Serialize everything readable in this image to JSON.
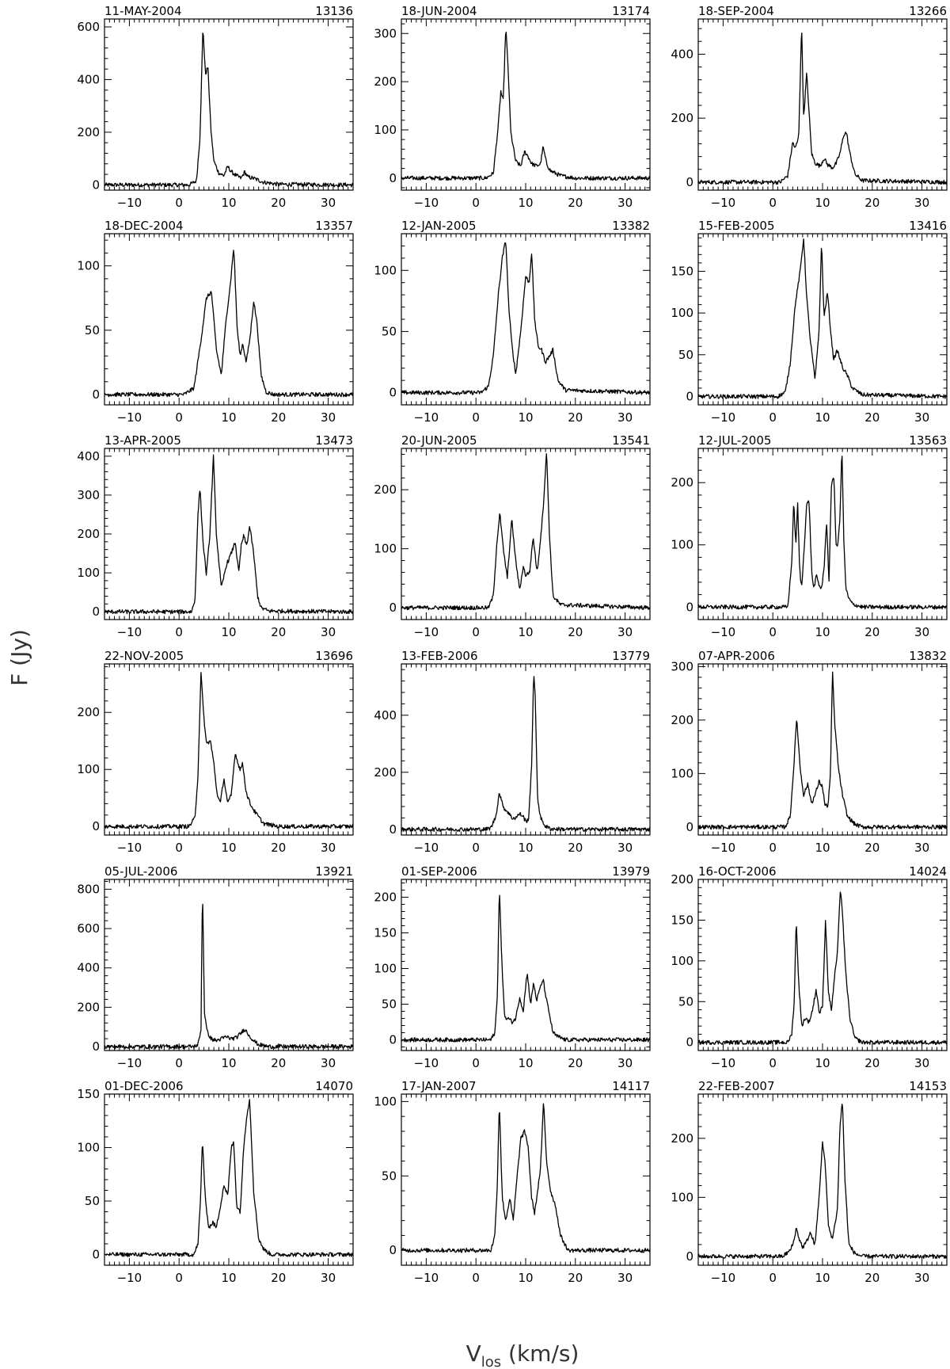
{
  "figure": {
    "ylabel": "F (Jy)",
    "xlabel_main": "V",
    "xlabel_sub": "los",
    "xlabel_unit": "(km/s)"
  },
  "chart_data": [
    {
      "type": "line",
      "date": "11-MAY-2004",
      "id": "13136",
      "xlim": [
        -15,
        35
      ],
      "ylim": [
        -20,
        630
      ],
      "yticks": [
        0,
        200,
        400,
        600
      ],
      "xticks": [
        -10,
        0,
        10,
        20,
        30
      ],
      "x": [
        -15,
        2,
        3.5,
        4.2,
        4.8,
        5.3,
        5.8,
        6.4,
        7,
        8,
        9,
        9.8,
        10.5,
        11.5,
        12.5,
        13.2,
        13.8,
        15,
        17,
        20,
        35
      ],
      "y": [
        0,
        0,
        15,
        180,
        600,
        420,
        450,
        210,
        90,
        45,
        35,
        70,
        50,
        35,
        25,
        50,
        30,
        25,
        10,
        2,
        0
      ]
    },
    {
      "type": "line",
      "date": "18-JUN-2004",
      "id": "13174",
      "xlim": [
        -15,
        35
      ],
      "ylim": [
        -25,
        330
      ],
      "yticks": [
        0,
        100,
        200,
        300
      ],
      "xticks": [
        -10,
        0,
        10,
        20,
        30
      ],
      "x": [
        -15,
        2,
        3.5,
        4.5,
        5,
        5.5,
        6,
        6.5,
        7,
        8,
        9,
        9.8,
        10.5,
        11.2,
        12.2,
        13,
        13.5,
        14.2,
        15,
        17,
        20,
        35
      ],
      "y": [
        0,
        0,
        10,
        110,
        180,
        160,
        315,
        220,
        95,
        35,
        25,
        55,
        45,
        30,
        25,
        30,
        65,
        30,
        15,
        5,
        0,
        0
      ]
    },
    {
      "type": "line",
      "date": "18-SEP-2004",
      "id": "13266",
      "xlim": [
        -15,
        35
      ],
      "ylim": [
        -25,
        510
      ],
      "yticks": [
        0,
        200,
        400
      ],
      "xticks": [
        -10,
        0,
        10,
        20,
        30
      ],
      "x": [
        -15,
        1.5,
        3,
        4,
        4.5,
        5.2,
        5.8,
        6.2,
        6.8,
        7.2,
        7.8,
        8.5,
        9.5,
        10.3,
        11,
        12,
        12.8,
        13.5,
        14.3,
        14.8,
        15.5,
        16.5,
        18,
        35
      ],
      "y": [
        0,
        0,
        20,
        125,
        105,
        140,
        490,
        200,
        340,
        240,
        90,
        60,
        50,
        75,
        55,
        45,
        60,
        90,
        150,
        155,
        90,
        25,
        5,
        0
      ]
    },
    {
      "type": "line",
      "date": "18-DEC-2004",
      "id": "13357",
      "xlim": [
        -15,
        35
      ],
      "ylim": [
        -8,
        125
      ],
      "yticks": [
        0,
        50,
        100
      ],
      "xticks": [
        -10,
        0,
        10,
        20,
        30
      ],
      "x": [
        -15,
        1,
        3,
        4.5,
        5.5,
        6.5,
        7.5,
        8.5,
        9.5,
        10.3,
        11,
        11.7,
        12.3,
        12.8,
        13.5,
        14.3,
        15,
        15.7,
        16.5,
        17.5,
        19,
        35
      ],
      "y": [
        0,
        0,
        5,
        45,
        75,
        80,
        35,
        15,
        60,
        85,
        115,
        50,
        30,
        40,
        25,
        45,
        73,
        55,
        15,
        2,
        0,
        0
      ]
    },
    {
      "type": "line",
      "date": "12-JAN-2005",
      "id": "13382",
      "xlim": [
        -15,
        35
      ],
      "ylim": [
        -10,
        130
      ],
      "yticks": [
        0,
        50,
        100
      ],
      "xticks": [
        -10,
        0,
        10,
        20,
        30
      ],
      "x": [
        -15,
        1,
        2.5,
        3.5,
        4.5,
        5.3,
        6,
        6.6,
        7.2,
        8,
        9,
        10,
        10.7,
        11.2,
        11.8,
        12.5,
        13.2,
        14,
        14.8,
        15.5,
        16.5,
        18,
        35
      ],
      "y": [
        0,
        0,
        5,
        30,
        80,
        110,
        125,
        70,
        40,
        15,
        50,
        95,
        90,
        115,
        60,
        38,
        35,
        25,
        30,
        35,
        10,
        2,
        0
      ]
    },
    {
      "type": "line",
      "date": "15-FEB-2005",
      "id": "13416",
      "xlim": [
        -15,
        35
      ],
      "ylim": [
        -10,
        195
      ],
      "yticks": [
        0,
        50,
        100,
        150
      ],
      "xticks": [
        -10,
        0,
        10,
        20,
        30
      ],
      "x": [
        -15,
        1,
        2.5,
        3.5,
        4.5,
        5.5,
        6.2,
        6.8,
        7.5,
        8.5,
        9.3,
        9.8,
        10.3,
        11,
        11.6,
        12.2,
        13,
        14,
        15,
        16,
        18,
        35
      ],
      "y": [
        0,
        0,
        5,
        40,
        110,
        150,
        190,
        120,
        70,
        20,
        80,
        185,
        95,
        125,
        80,
        45,
        55,
        35,
        25,
        10,
        2,
        0
      ]
    },
    {
      "type": "line",
      "date": "13-APR-2005",
      "id": "13473",
      "xlim": [
        -15,
        35
      ],
      "ylim": [
        -20,
        420
      ],
      "yticks": [
        0,
        100,
        200,
        300,
        400
      ],
      "xticks": [
        -10,
        0,
        10,
        20,
        30
      ],
      "x": [
        -15,
        2.5,
        3.2,
        3.8,
        4.2,
        4.8,
        5.5,
        6.2,
        6.9,
        7.5,
        8.5,
        9.5,
        10.5,
        11.3,
        12,
        12.5,
        13,
        13.6,
        14.2,
        15,
        15.8,
        16.5,
        18,
        35
      ],
      "y": [
        0,
        0,
        30,
        250,
        320,
        180,
        95,
        200,
        400,
        200,
        60,
        120,
        150,
        180,
        100,
        170,
        195,
        170,
        220,
        150,
        40,
        10,
        2,
        0
      ]
    },
    {
      "type": "line",
      "date": "20-JUN-2005",
      "id": "13541",
      "xlim": [
        -15,
        35
      ],
      "ylim": [
        -20,
        270
      ],
      "yticks": [
        0,
        100,
        200
      ],
      "xticks": [
        -10,
        0,
        10,
        20,
        30
      ],
      "x": [
        -15,
        2.5,
        3.5,
        4.2,
        4.8,
        5.5,
        6.3,
        7.2,
        8,
        8.8,
        9.5,
        10,
        10.8,
        11.5,
        12.3,
        12.8,
        13.5,
        14.2,
        14.8,
        15.5,
        17,
        35
      ],
      "y": [
        0,
        0,
        20,
        110,
        160,
        100,
        50,
        150,
        80,
        30,
        70,
        55,
        60,
        120,
        60,
        100,
        165,
        265,
        120,
        20,
        5,
        0
      ]
    },
    {
      "type": "line",
      "date": "12-JUL-2005",
      "id": "13563",
      "xlim": [
        -15,
        35
      ],
      "ylim": [
        -20,
        255
      ],
      "yticks": [
        0,
        100,
        200
      ],
      "xticks": [
        -10,
        0,
        10,
        20,
        30
      ],
      "x": [
        -15,
        3,
        3.8,
        4.2,
        4.6,
        5,
        5.4,
        5.8,
        6.3,
        6.8,
        7.3,
        7.8,
        8.2,
        8.8,
        9.3,
        9.8,
        10.3,
        10.8,
        11.3,
        11.8,
        12.3,
        12.7,
        13.1,
        13.5,
        13.9,
        14.3,
        14.7,
        15.2,
        16,
        18,
        35
      ],
      "y": [
        0,
        0,
        70,
        170,
        100,
        165,
        60,
        30,
        95,
        165,
        170,
        60,
        30,
        50,
        35,
        30,
        60,
        140,
        40,
        200,
        210,
        100,
        100,
        145,
        255,
        100,
        30,
        15,
        5,
        0,
        0
      ]
    },
    {
      "type": "line",
      "date": "22-NOV-2005",
      "id": "13696",
      "xlim": [
        -15,
        35
      ],
      "ylim": [
        -15,
        285
      ],
      "yticks": [
        0,
        100,
        200
      ],
      "xticks": [
        -10,
        0,
        10,
        20,
        30
      ],
      "x": [
        -15,
        2,
        3.2,
        3.8,
        4.4,
        4.9,
        5.5,
        6.3,
        7,
        7.6,
        8.3,
        9,
        9.8,
        10.5,
        11.3,
        11.7,
        12.3,
        12.8,
        13.5,
        14.3,
        15.3,
        17,
        20,
        35
      ],
      "y": [
        0,
        0,
        15,
        90,
        270,
        200,
        145,
        150,
        110,
        60,
        40,
        85,
        40,
        55,
        130,
        115,
        100,
        110,
        60,
        40,
        25,
        5,
        0,
        0
      ]
    },
    {
      "type": "line",
      "date": "13-FEB-2006",
      "id": "13779",
      "xlim": [
        -15,
        35
      ],
      "ylim": [
        -20,
        580
      ],
      "yticks": [
        0,
        200,
        400
      ],
      "xticks": [
        -10,
        0,
        10,
        20,
        30
      ],
      "x": [
        -15,
        2,
        3,
        4,
        4.7,
        5.2,
        5.8,
        6.5,
        7.2,
        8,
        8.8,
        9.5,
        10.1,
        10.6,
        11.2,
        11.6,
        11.9,
        12.4,
        13,
        14,
        15,
        18,
        35
      ],
      "y": [
        0,
        0,
        5,
        45,
        130,
        95,
        70,
        60,
        40,
        40,
        55,
        45,
        25,
        40,
        220,
        550,
        470,
        110,
        40,
        10,
        2,
        0,
        0
      ]
    },
    {
      "type": "line",
      "date": "07-APR-2006",
      "id": "13832",
      "xlim": [
        -15,
        35
      ],
      "ylim": [
        -15,
        305
      ],
      "yticks": [
        0,
        100,
        200,
        300
      ],
      "xticks": [
        -10,
        0,
        10,
        20,
        30
      ],
      "x": [
        -15,
        2.5,
        3.5,
        4.2,
        4.8,
        5.5,
        6.2,
        7,
        7.8,
        8.5,
        9.3,
        10,
        10.5,
        11.1,
        11.6,
        12,
        12.4,
        13.2,
        14,
        15,
        16.5,
        18,
        35
      ],
      "y": [
        0,
        0,
        20,
        110,
        205,
        110,
        60,
        80,
        45,
        60,
        85,
        75,
        40,
        40,
        100,
        295,
        200,
        110,
        60,
        20,
        5,
        0,
        0
      ]
    },
    {
      "type": "line",
      "date": "05-JUL-2006",
      "id": "13921",
      "xlim": [
        -15,
        35
      ],
      "ylim": [
        -20,
        850
      ],
      "yticks": [
        0,
        200,
        400,
        600,
        800
      ],
      "xticks": [
        -10,
        0,
        10,
        20,
        30
      ],
      "x": [
        -15,
        3,
        3.8,
        4.4,
        4.7,
        5.1,
        5.6,
        6.4,
        7.5,
        8.5,
        9.5,
        10.5,
        11.5,
        12.5,
        13.2,
        14,
        15,
        16,
        18,
        35
      ],
      "y": [
        0,
        0,
        10,
        80,
        820,
        180,
        80,
        40,
        30,
        40,
        50,
        40,
        45,
        70,
        90,
        60,
        30,
        10,
        0,
        0
      ]
    },
    {
      "type": "line",
      "date": "01-SEP-2006",
      "id": "13979",
      "xlim": [
        -15,
        35
      ],
      "ylim": [
        -15,
        225
      ],
      "yticks": [
        0,
        50,
        100,
        150,
        200
      ],
      "xticks": [
        -10,
        0,
        10,
        20,
        30
      ],
      "x": [
        -15,
        3,
        3.8,
        4.3,
        4.7,
        5.2,
        5.8,
        6.5,
        7.3,
        8,
        8.8,
        9.5,
        10.3,
        11,
        11.6,
        12.2,
        12.8,
        13.5,
        14.2,
        14.8,
        15.5,
        16.3,
        18,
        20,
        35
      ],
      "y": [
        0,
        0,
        10,
        60,
        215,
        110,
        30,
        30,
        25,
        30,
        60,
        40,
        95,
        50,
        80,
        55,
        70,
        85,
        55,
        35,
        10,
        5,
        0,
        0,
        0
      ]
    },
    {
      "type": "line",
      "date": "16-OCT-2006",
      "id": "14024",
      "xlim": [
        -15,
        35
      ],
      "ylim": [
        -10,
        200
      ],
      "yticks": [
        0,
        50,
        100,
        150,
        200
      ],
      "xticks": [
        -10,
        0,
        10,
        20,
        30
      ],
      "x": [
        -15,
        3,
        3.8,
        4.3,
        4.7,
        5.2,
        5.8,
        6.5,
        7.3,
        8,
        8.7,
        9.4,
        10,
        10.6,
        11.2,
        11.8,
        12.4,
        13,
        13.6,
        14,
        14.6,
        15.5,
        16.5,
        18,
        35
      ],
      "y": [
        0,
        0,
        10,
        50,
        150,
        75,
        20,
        30,
        25,
        40,
        65,
        35,
        45,
        150,
        60,
        40,
        80,
        110,
        190,
        160,
        90,
        30,
        5,
        0,
        0
      ]
    },
    {
      "type": "line",
      "date": "01-DEC-2006",
      "id": "14070",
      "xlim": [
        -15,
        35
      ],
      "ylim": [
        -10,
        150
      ],
      "yticks": [
        0,
        50,
        100,
        150
      ],
      "xticks": [
        -10,
        0,
        10,
        20,
        30
      ],
      "x": [
        -15,
        3,
        3.8,
        4.3,
        4.7,
        5.3,
        6,
        6.8,
        7.5,
        8.3,
        9,
        9.8,
        10.5,
        11,
        11.6,
        12.3,
        13,
        13.6,
        14.2,
        15,
        16,
        17,
        18.5,
        35
      ],
      "y": [
        0,
        0,
        10,
        50,
        108,
        50,
        25,
        30,
        25,
        45,
        65,
        55,
        100,
        105,
        45,
        40,
        100,
        130,
        145,
        60,
        15,
        5,
        0,
        0
      ]
    },
    {
      "type": "line",
      "date": "17-JAN-2007",
      "id": "14117",
      "xlim": [
        -15,
        35
      ],
      "ylim": [
        -10,
        105
      ],
      "yticks": [
        0,
        50,
        100
      ],
      "xticks": [
        -10,
        0,
        10,
        20,
        30
      ],
      "x": [
        -15,
        3,
        3.8,
        4.3,
        4.7,
        5.3,
        6,
        6.8,
        7.5,
        8.3,
        9,
        9.8,
        10.5,
        11.2,
        11.8,
        12.4,
        13,
        13.6,
        14.2,
        15,
        16,
        17,
        18.5,
        35
      ],
      "y": [
        0,
        0,
        10,
        45,
        100,
        35,
        20,
        35,
        20,
        50,
        75,
        80,
        70,
        35,
        25,
        40,
        55,
        100,
        60,
        40,
        30,
        10,
        0,
        0
      ]
    },
    {
      "type": "line",
      "date": "22-FEB-2007",
      "id": "14153",
      "xlim": [
        -15,
        35
      ],
      "ylim": [
        -15,
        275
      ],
      "yticks": [
        0,
        100,
        200
      ],
      "xticks": [
        -10,
        0,
        10,
        20,
        30
      ],
      "x": [
        -15,
        2,
        3.5,
        4.2,
        4.7,
        5.3,
        6,
        6.8,
        7.5,
        8.5,
        9.3,
        10,
        10.5,
        11.2,
        12,
        13,
        13.5,
        14,
        14.5,
        15.3,
        16.5,
        18,
        35
      ],
      "y": [
        0,
        0,
        10,
        25,
        48,
        30,
        15,
        25,
        40,
        20,
        100,
        195,
        160,
        50,
        30,
        80,
        220,
        265,
        130,
        20,
        5,
        0,
        0
      ]
    }
  ]
}
